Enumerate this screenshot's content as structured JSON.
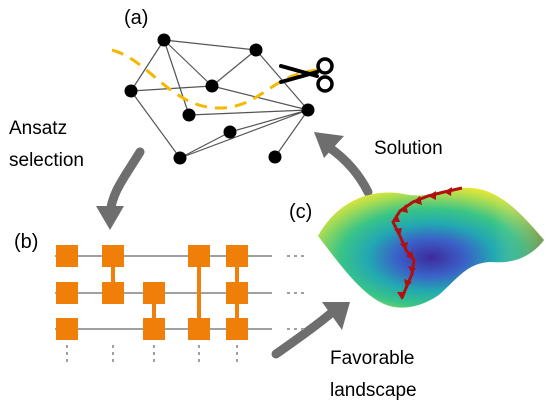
{
  "panels": {
    "a": "(a)",
    "b": "(b)",
    "c": "(c)"
  },
  "labels": {
    "ansatz_line1": "Ansatz",
    "ansatz_line2": "selection",
    "solution": "Solution",
    "favorable_line1": "Favorable",
    "favorable_line2": "landscape",
    "ellipsis": "···"
  },
  "icons": {
    "cut": "scissors-icon"
  },
  "colors": {
    "graph_node": "#000000",
    "graph_edge": "#555555",
    "cut_line": "#f5b800",
    "gate": "#f07f09",
    "wire": "#a0a0a0",
    "arrow": "#6e6e6e",
    "path": "#b01010"
  }
}
